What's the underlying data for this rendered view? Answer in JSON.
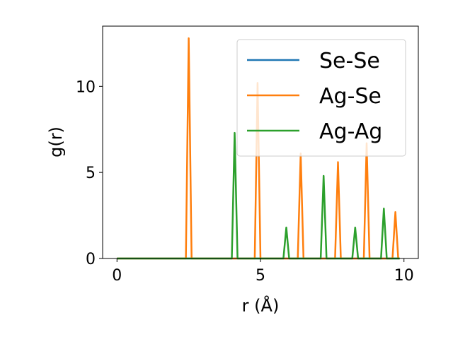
{
  "chart_data": {
    "type": "line",
    "title": "",
    "xlabel": "r (Å)",
    "ylabel": "g(r)",
    "xlim": [
      -0.5,
      10.5
    ],
    "ylim": [
      0,
      13.5
    ],
    "xticks": [
      0,
      5,
      10
    ],
    "yticks": [
      0,
      5,
      10
    ],
    "grid": false,
    "legend_position": "top-right",
    "series": [
      {
        "name": "Se-Se",
        "color": "#1f77b4",
        "x": [
          0,
          9.85
        ],
        "y": [
          0,
          0
        ]
      },
      {
        "name": "Ag-Se",
        "color": "#ff7f0e",
        "x": [
          0,
          2.4,
          2.5,
          2.6,
          4.8,
          4.9,
          5.0,
          6.3,
          6.4,
          6.5,
          7.6,
          7.7,
          7.8,
          8.6,
          8.7,
          8.8,
          9.6,
          9.7,
          9.8,
          9.85
        ],
        "y": [
          0,
          0,
          12.8,
          0,
          0,
          10.2,
          0,
          0,
          6.1,
          0,
          0,
          5.6,
          0,
          0,
          6.7,
          0,
          0,
          2.7,
          0,
          0
        ]
      },
      {
        "name": "Ag-Ag",
        "color": "#2ca02c",
        "x": [
          0,
          4.0,
          4.1,
          4.2,
          5.8,
          5.9,
          6.0,
          7.1,
          7.2,
          7.3,
          8.2,
          8.3,
          8.4,
          9.2,
          9.3,
          9.4,
          9.85
        ],
        "y": [
          0,
          0,
          7.3,
          0,
          0,
          1.8,
          0,
          0,
          4.8,
          0,
          0,
          1.8,
          0,
          0,
          2.9,
          0,
          0
        ]
      }
    ]
  }
}
